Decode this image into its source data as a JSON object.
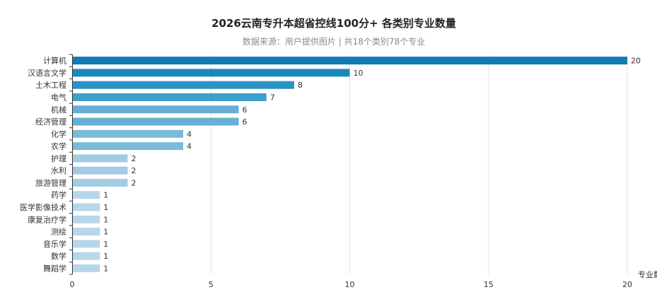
{
  "chart_data": {
    "type": "bar",
    "orientation": "horizontal",
    "title": "2026云南专升本超省控线100分+ 各类别专业数量",
    "subtitle": "数据来源：用户提供图片 | 共18个类别78个专业",
    "xlabel": "专业数",
    "ylabel": "",
    "xlim": [
      0,
      20
    ],
    "xticks": [
      0,
      5,
      10,
      15,
      20
    ],
    "grid": true,
    "categories": [
      "计算机",
      "汉语言文学",
      "土木工程",
      "电气",
      "机械",
      "经济管理",
      "化学",
      "农学",
      "护理",
      "水利",
      "旅游管理",
      "药学",
      "医学影像技术",
      "康复治疗学",
      "测绘",
      "音乐学",
      "数学",
      "舞蹈学"
    ],
    "values": [
      20,
      10,
      8,
      7,
      6,
      6,
      4,
      4,
      2,
      2,
      2,
      1,
      1,
      1,
      1,
      1,
      1,
      1
    ],
    "colors": [
      "#0f7bb4",
      "#1b88bd",
      "#2b93c4",
      "#3a9fca",
      "#67afd4",
      "#67afd4",
      "#7bbad8",
      "#7bbad8",
      "#a2cbe4",
      "#a2cbe4",
      "#a2cbe4",
      "#b8d6ea",
      "#b8d6ea",
      "#b8d6ea",
      "#b8d6ea",
      "#b8d6ea",
      "#b8d6ea",
      "#b8d6ea"
    ]
  }
}
